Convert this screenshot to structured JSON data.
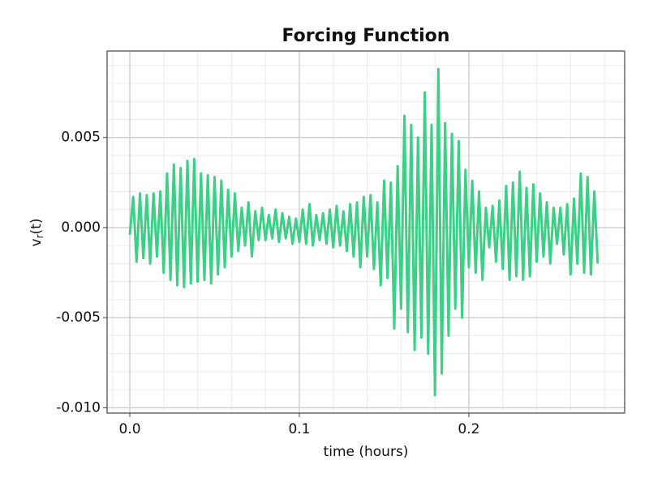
{
  "chart_data": {
    "type": "line",
    "title": "Forcing Function",
    "x_label": "time (hours)",
    "y_label": [
      "v",
      "r",
      "(t)"
    ],
    "color": "#3ccf86",
    "grid": true,
    "xlim": [
      -0.0134,
      0.2919
    ],
    "ylim": [
      -0.0103,
      0.0098
    ],
    "xticks": [
      {
        "value": 0,
        "label": "0.0"
      },
      0.1,
      0.2
    ],
    "yticks": [
      {
        "value": -0.01,
        "label": "-0.010"
      },
      -0.005,
      {
        "value": 0,
        "label": "0.000"
      },
      0.005
    ],
    "xminorticks": [
      -0.01,
      0.02,
      0.04,
      0.06,
      0.08,
      0.12,
      0.14,
      0.16,
      0.18,
      0.22,
      0.24,
      0.26,
      0.28
    ],
    "yminorticks": [
      -0.009,
      -0.008,
      -0.007,
      -0.006,
      -0.004,
      -0.003,
      -0.002,
      -0.001,
      0.001,
      0.002,
      0.003,
      0.004,
      0.006,
      0.007,
      0.008,
      0.009
    ],
    "x": [
      0,
      0.002,
      0.004,
      0.006,
      0.008,
      0.01,
      0.012,
      0.014,
      0.016,
      0.018,
      0.02,
      0.022,
      0.024,
      0.026,
      0.028,
      0.03,
      0.032,
      0.034,
      0.036,
      0.038,
      0.04,
      0.042,
      0.044,
      0.046,
      0.048,
      0.05,
      0.052,
      0.054,
      0.056,
      0.058,
      0.06,
      0.062,
      0.064,
      0.066,
      0.068,
      0.07,
      0.072,
      0.074,
      0.076,
      0.078,
      0.08,
      0.082,
      0.084,
      0.086,
      0.088,
      0.09,
      0.092,
      0.094,
      0.096,
      0.098,
      0.1,
      0.102,
      0.104,
      0.106,
      0.108,
      0.11,
      0.112,
      0.114,
      0.116,
      0.118,
      0.12,
      0.122,
      0.124,
      0.126,
      0.128,
      0.13,
      0.132,
      0.134,
      0.136,
      0.138,
      0.14,
      0.142,
      0.144,
      0.146,
      0.148,
      0.15,
      0.152,
      0.154,
      0.156,
      0.158,
      0.16,
      0.162,
      0.164,
      0.166,
      0.168,
      0.17,
      0.172,
      0.174,
      0.176,
      0.178,
      0.18,
      0.182,
      0.184,
      0.186,
      0.188,
      0.19,
      0.192,
      0.194,
      0.196,
      0.198,
      0.2,
      0.202,
      0.204,
      0.206,
      0.208,
      0.21,
      0.212,
      0.214,
      0.216,
      0.218,
      0.22,
      0.222,
      0.224,
      0.226,
      0.228,
      0.23,
      0.232,
      0.234,
      0.236,
      0.238,
      0.24,
      0.242,
      0.244,
      0.246,
      0.248,
      0.25,
      0.252,
      0.254,
      0.256,
      0.258,
      0.26,
      0.262,
      0.264,
      0.266,
      0.268,
      0.27,
      0.272,
      0.274,
      0.276
    ],
    "values": [
      -0.0004,
      0.0017,
      -0.0019,
      0.0019,
      -0.0017,
      0.0018,
      -0.002,
      0.0019,
      -0.0016,
      0.002,
      -0.0025,
      0.003,
      -0.0029,
      0.0035,
      -0.0032,
      0.0033,
      -0.0033,
      0.0037,
      -0.0031,
      0.0038,
      -0.003,
      0.003,
      -0.0029,
      0.0029,
      -0.0031,
      0.0028,
      -0.0026,
      0.0026,
      -0.0022,
      0.0021,
      -0.0016,
      0.0019,
      -0.0013,
      0.0011,
      -0.001,
      0.0014,
      -0.0016,
      0.0009,
      -0.0007,
      0.0011,
      -0.0007,
      0.0007,
      -0.0006,
      0.001,
      -0.0008,
      0.0008,
      -0.0006,
      0.0006,
      -0.0009,
      0.0005,
      -0.0008,
      0.001,
      -0.0009,
      0.0013,
      -0.001,
      0.0007,
      -0.0007,
      0.0008,
      -0.0009,
      0.001,
      -0.0011,
      0.0012,
      -0.001,
      0.0009,
      -0.0013,
      0.0013,
      -0.0016,
      0.0014,
      -0.0022,
      0.0017,
      -0.0016,
      0.0018,
      -0.0023,
      0.0014,
      -0.0032,
      0.0026,
      -0.0028,
      0.0025,
      -0.0056,
      0.0034,
      -0.0045,
      0.0062,
      -0.0058,
      0.0057,
      -0.0068,
      0.005,
      -0.0061,
      0.0075,
      -0.007,
      0.0057,
      -0.0093,
      0.0088,
      -0.0081,
      0.0058,
      -0.006,
      0.0052,
      -0.0045,
      0.0048,
      -0.005,
      0.0032,
      -0.0022,
      0.0026,
      -0.0025,
      0.002,
      -0.0029,
      0.0011,
      -0.0011,
      0.0012,
      -0.0019,
      0.0015,
      -0.0023,
      0.0023,
      -0.0029,
      0.0025,
      -0.0027,
      0.0031,
      -0.0029,
      0.0022,
      -0.0027,
      0.0024,
      -0.0019,
      0.0019,
      -0.0016,
      0.0014,
      -0.002,
      0.0011,
      -0.0009,
      0.0011,
      -0.0015,
      0.0013,
      -0.0026,
      0.0016,
      -0.002,
      0.003,
      -0.0025,
      0.0028,
      -0.0026,
      0.002,
      -0.002
    ]
  }
}
